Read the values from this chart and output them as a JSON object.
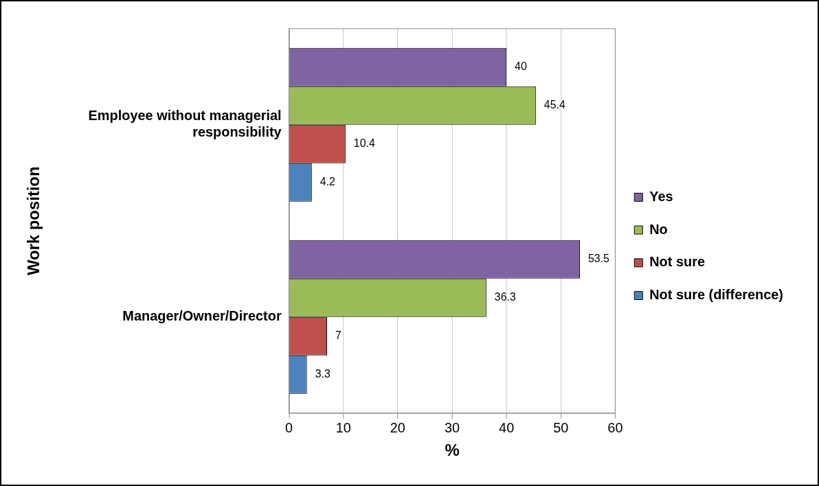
{
  "chart_data": {
    "type": "bar",
    "orientation": "horizontal",
    "xlabel": "%",
    "ylabel": "Work position",
    "categories": [
      "Employee without managerial responsibility",
      "Manager/Owner/Director"
    ],
    "series": [
      {
        "name": "Yes",
        "color": "#8064a2",
        "values": [
          40,
          53.5
        ]
      },
      {
        "name": "No",
        "color": "#9bbb59",
        "values": [
          45.4,
          36.3
        ]
      },
      {
        "name": "Not sure",
        "color": "#c0504d",
        "values": [
          10.4,
          7
        ]
      },
      {
        "name": "Not sure (difference)",
        "color": "#4f81bd",
        "values": [
          4.2,
          3.3
        ]
      }
    ],
    "xlim": [
      0,
      60
    ],
    "xticks": [
      0,
      10,
      20,
      30,
      40,
      50,
      60
    ],
    "grid": "x",
    "legend": "right",
    "data_labels": true
  }
}
